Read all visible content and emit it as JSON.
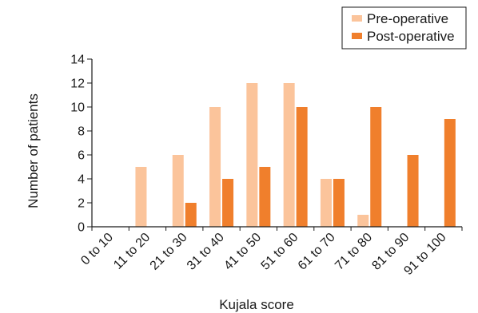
{
  "chart_data": {
    "type": "bar",
    "categories": [
      "0 to 10",
      "11 to 20",
      "21 to 30",
      "31 to 40",
      "41 to 50",
      "51 to 60",
      "61 to 70",
      "71 to 80",
      "81 to 90",
      "91 to 100"
    ],
    "series": [
      {
        "name": "Pre-operative",
        "values": [
          0,
          5,
          6,
          10,
          12,
          12,
          4,
          1,
          0,
          0
        ],
        "color": "#fbc49b"
      },
      {
        "name": "Post-operative",
        "values": [
          0,
          0,
          2,
          4,
          5,
          10,
          4,
          10,
          6,
          9
        ],
        "color": "#f07f2c"
      }
    ],
    "xlabel": "Kujala score",
    "ylabel": "Number of patients",
    "ylim": [
      0,
      14
    ],
    "yticks": [
      0,
      2,
      4,
      6,
      8,
      10,
      12,
      14
    ],
    "grid": false,
    "legend_position": "top-right"
  }
}
